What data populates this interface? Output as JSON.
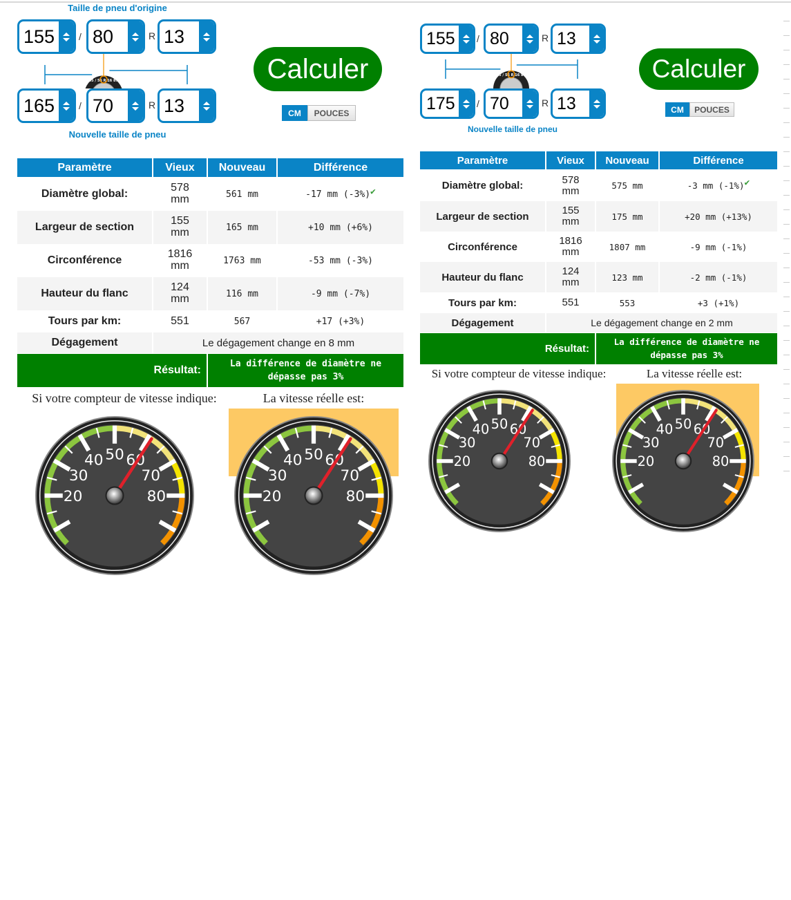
{
  "colors": {
    "accent": "#0a84c6",
    "success": "#008000",
    "highlight": "#fdc964",
    "needle": "#e0202a",
    "gauge_face": "#444444"
  },
  "panels": [
    {
      "origin_label": "Taille de pneu d'origine",
      "new_label": "Nouvelle taille de pneu",
      "original": {
        "width": "155",
        "ratio": "80",
        "rim": "13"
      },
      "new": {
        "width": "165",
        "ratio": "70",
        "rim": "13"
      },
      "separator": "/",
      "rim_prefix": "R",
      "tire_image_text": "195 / 55 R 16 87V",
      "calc_label": "Calculer",
      "units": [
        "CM",
        "POUCES"
      ],
      "active_unit": "CM",
      "table": {
        "headers": [
          "Paramètre",
          "Vieux",
          "Nouveau",
          "Différence"
        ],
        "rows": [
          {
            "param": "Diamètre global:",
            "old": "578 mm",
            "new": "561 mm",
            "diff": "-17 mm (-3%)",
            "ok": true
          },
          {
            "param": "Largeur de section",
            "old": "155 mm",
            "new": "165 mm",
            "diff": "+10 mm (+6%)",
            "ok": false
          },
          {
            "param": "Circonférence",
            "old": "1816 mm",
            "new": "1763 mm",
            "diff": "-53 mm (-3%)",
            "ok": false
          },
          {
            "param": "Hauteur du flanc",
            "old": "124 mm",
            "new": "116 mm",
            "diff": "-9 mm (-7%)",
            "ok": false
          },
          {
            "param": "Tours par km:",
            "old": "551",
            "new": "567",
            "diff": "+17 (+3%)",
            "ok": false
          }
        ],
        "clearance": {
          "label": "Dégagement",
          "text": "Le dégagement change en 8 mm"
        },
        "result": {
          "label": "Résultat:",
          "text": "La différence de diamètre ne dépasse pas 3%"
        }
      },
      "speed": {
        "indicated_label": "Si votre compteur de vitesse indique:",
        "actual_label": "La vitesse réelle est:",
        "ticks": [
          "20",
          "30",
          "40",
          "50",
          "60",
          "70",
          "80"
        ],
        "indicated_value": 61,
        "actual_value": 61
      }
    },
    {
      "new_label": "Nouvelle taille de pneu",
      "original": {
        "width": "155",
        "ratio": "80",
        "rim": "13"
      },
      "new": {
        "width": "175",
        "ratio": "70",
        "rim": "13"
      },
      "separator": "/",
      "rim_prefix": "R",
      "tire_image_text": "195 / 55 R 16 87V",
      "calc_label": "Calculer",
      "units": [
        "CM",
        "POUCES"
      ],
      "active_unit": "CM",
      "table": {
        "headers": [
          "Paramètre",
          "Vieux",
          "Nouveau",
          "Différence"
        ],
        "rows": [
          {
            "param": "Diamètre global:",
            "old": "578 mm",
            "new": "575 mm",
            "diff": "-3 mm (-1%)",
            "ok": true
          },
          {
            "param": "Largeur de section",
            "old": "155 mm",
            "new": "175 mm",
            "diff": "+20 mm (+13%)",
            "ok": false
          },
          {
            "param": "Circonférence",
            "old": "1816 mm",
            "new": "1807 mm",
            "diff": "-9 mm (-1%)",
            "ok": false
          },
          {
            "param": "Hauteur du flanc",
            "old": "124 mm",
            "new": "123 mm",
            "diff": "-2 mm (-1%)",
            "ok": false
          },
          {
            "param": "Tours par km:",
            "old": "551",
            "new": "553",
            "diff": "+3 (+1%)",
            "ok": false
          }
        ],
        "clearance": {
          "label": "Dégagement",
          "text": "Le dégagement change en 2 mm"
        },
        "result": {
          "label": "Résultat:",
          "text": "La différence de diamètre ne dépasse pas 3%"
        }
      },
      "speed": {
        "indicated_label": "Si votre compteur de vitesse indique:",
        "actual_label": "La vitesse réelle est:",
        "ticks": [
          "20",
          "30",
          "40",
          "50",
          "60",
          "70",
          "80"
        ],
        "indicated_value": 61,
        "actual_value": 61
      }
    }
  ]
}
